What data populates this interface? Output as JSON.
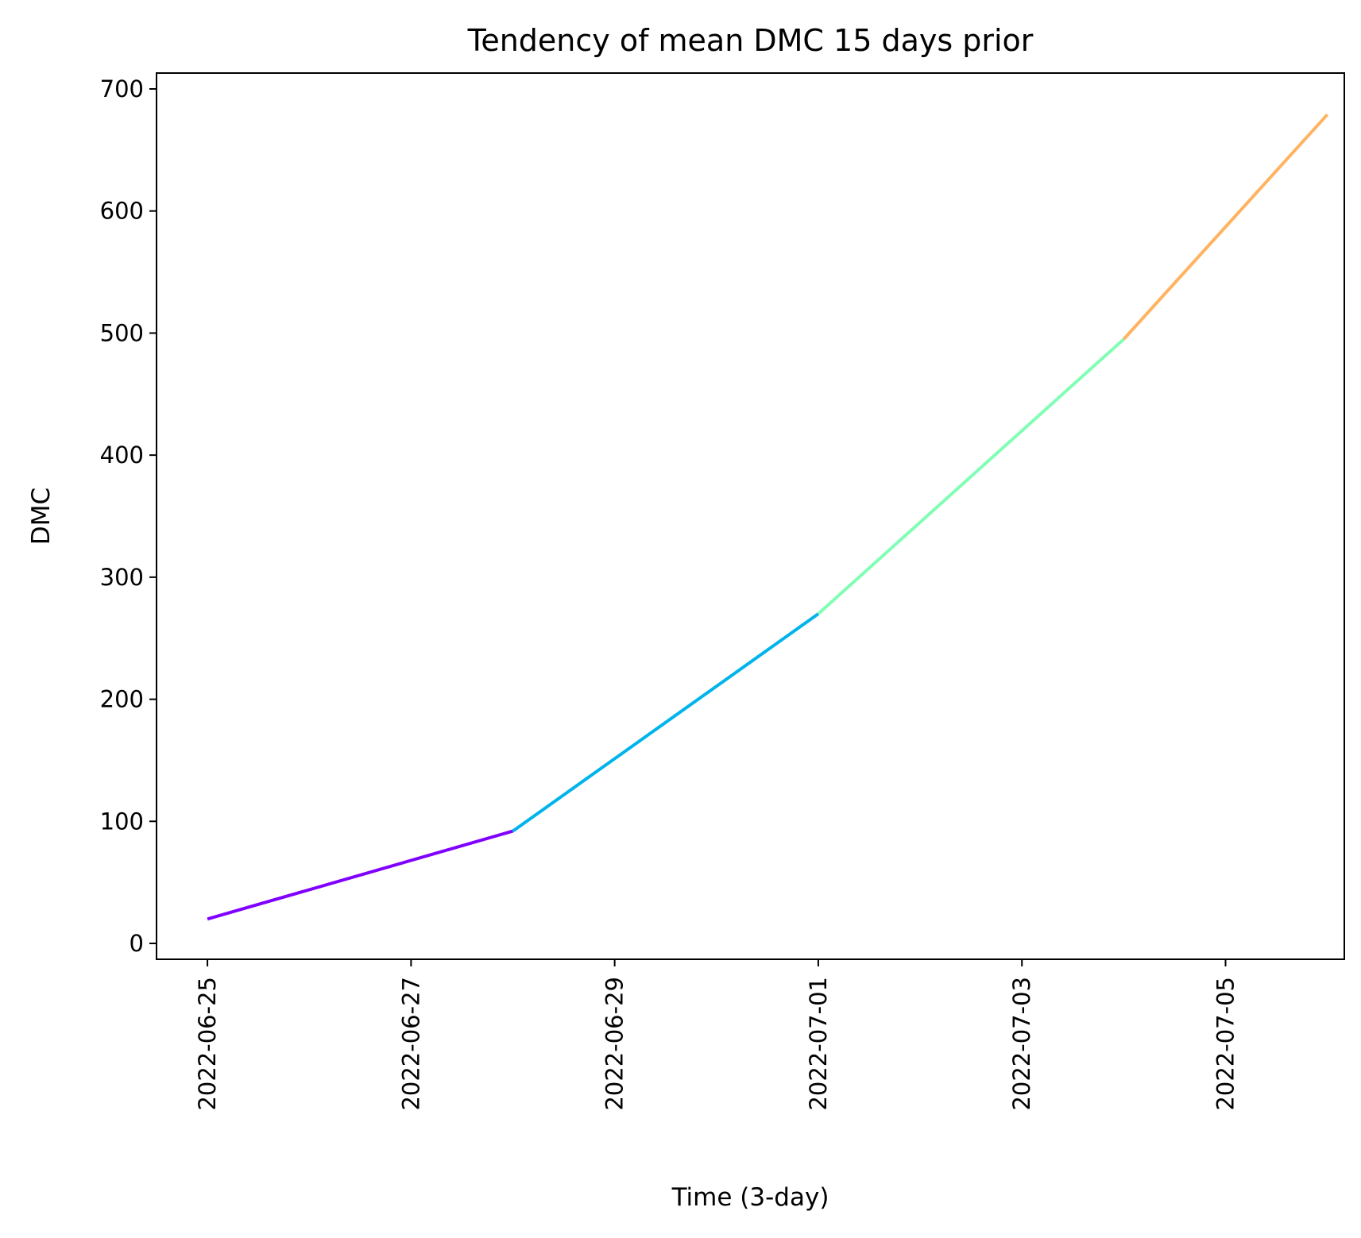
{
  "chart_data": {
    "type": "line",
    "title": "Tendency of mean DMC 15 days prior",
    "xlabel": "Time (3-day)",
    "ylabel": "DMC",
    "x_ticks": [
      "2022-06-25",
      "2022-06-27",
      "2022-06-29",
      "2022-07-01",
      "2022-07-03",
      "2022-07-05"
    ],
    "y_ticks": [
      0,
      100,
      200,
      300,
      400,
      500,
      600,
      700
    ],
    "xlim": [
      "2022-06-24T12:00",
      "2022-07-06T04:00"
    ],
    "ylim": [
      -13,
      713
    ],
    "grid": false,
    "segments": [
      {
        "color": "#8000ff",
        "points": [
          {
            "x": "2022-06-25",
            "y": 20
          },
          {
            "x": "2022-06-28",
            "y": 92
          }
        ]
      },
      {
        "color": "#00b4eb",
        "points": [
          {
            "x": "2022-06-28",
            "y": 92
          },
          {
            "x": "2022-07-01",
            "y": 270
          }
        ]
      },
      {
        "color": "#80ffb4",
        "points": [
          {
            "x": "2022-07-01",
            "y": 270
          },
          {
            "x": "2022-07-04",
            "y": 495
          }
        ]
      },
      {
        "color": "#ffb360",
        "points": [
          {
            "x": "2022-07-04",
            "y": 495
          },
          {
            "x": "2022-07-06",
            "y": 679
          }
        ]
      }
    ]
  }
}
